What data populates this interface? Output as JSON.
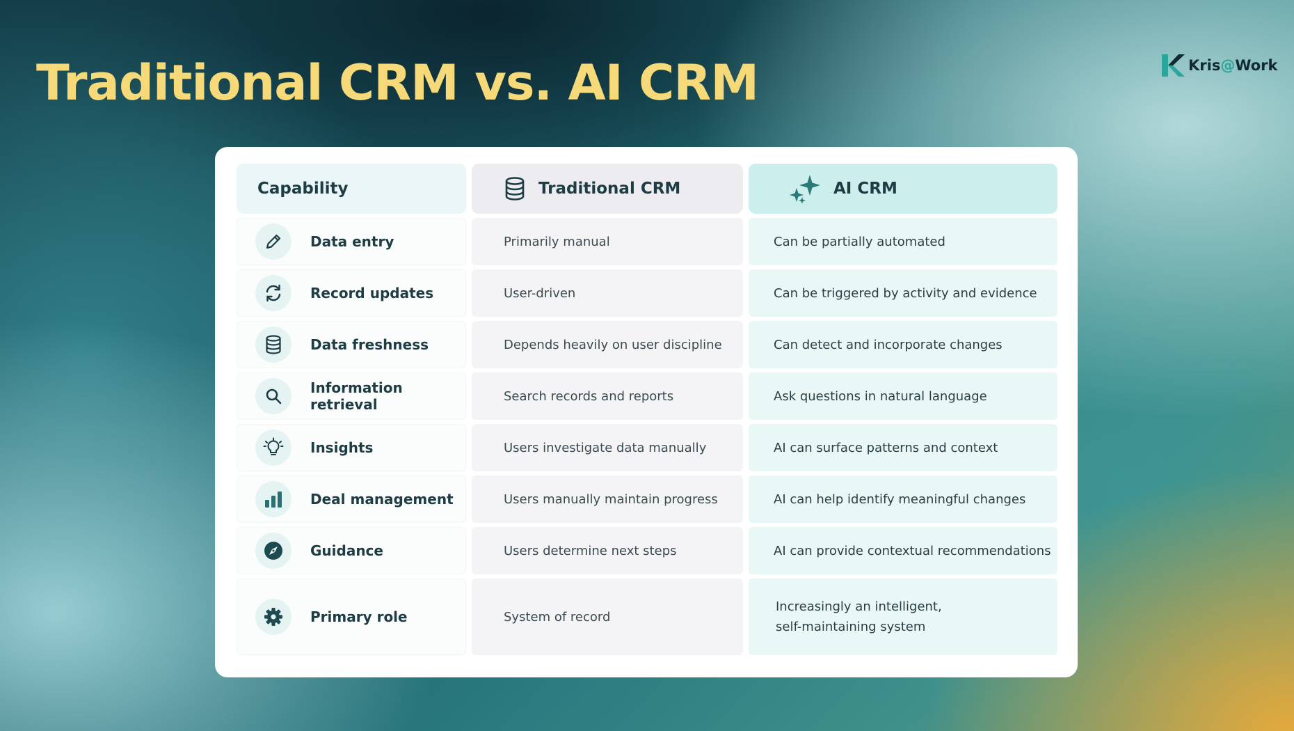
{
  "title": "Traditional CRM vs. AI CRM",
  "brand": {
    "name": "Kris",
    "at": "@",
    "suffix": "Work"
  },
  "colors": {
    "title": "#f6d979",
    "accent": "#2a7a78",
    "ai_header_bg": "#ccefee",
    "ai_cell_bg": "#e9f7f7",
    "traditional_cell_bg": "#f4f4f6"
  },
  "table": {
    "headers": {
      "capability": "Capability",
      "traditional": {
        "label": "Traditional CRM",
        "icon": "database-icon"
      },
      "ai": {
        "label": "AI CRM",
        "icon": "sparkles-icon"
      }
    },
    "rows": [
      {
        "icon": "pencil-icon",
        "capability": "Data entry",
        "traditional": "Primarily manual",
        "ai": "Can be partially automated"
      },
      {
        "icon": "refresh-icon",
        "capability": "Record updates",
        "traditional": "User-driven",
        "ai": "Can be triggered by activity and evidence"
      },
      {
        "icon": "database-icon",
        "capability": "Data freshness",
        "traditional": "Depends heavily on user discipline",
        "ai": "Can detect and incorporate changes"
      },
      {
        "icon": "search-icon",
        "capability": "Information retrieval",
        "traditional": "Search records and reports",
        "ai": "Ask questions in natural language"
      },
      {
        "icon": "lightbulb-icon",
        "capability": "Insights",
        "traditional": "Users investigate data manually",
        "ai": "AI can surface patterns and context"
      },
      {
        "icon": "bar-chart-icon",
        "capability": "Deal management",
        "traditional": "Users manually maintain progress",
        "ai": "AI can help identify meaningful changes"
      },
      {
        "icon": "compass-icon",
        "capability": "Guidance",
        "traditional": "Users determine next steps",
        "ai": "AI can provide contextual recommendations"
      },
      {
        "icon": "gear-icon",
        "capability": "Primary role",
        "traditional": "System of record",
        "ai": "Increasingly an intelligent,\nself-maintaining system"
      }
    ]
  }
}
